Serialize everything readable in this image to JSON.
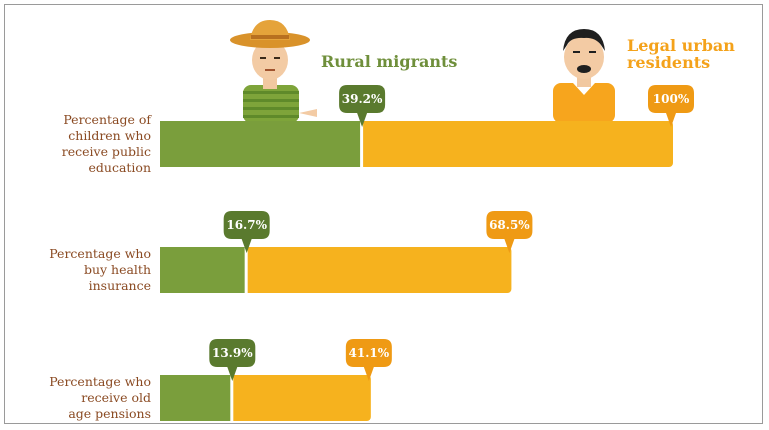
{
  "colors": {
    "rural_bar": "#7a9e3c",
    "rural_pin": "#5a7a2e",
    "urban_bar": "#f6b21e",
    "urban_pin": "#ef9a14",
    "label": "#8a4a22"
  },
  "figures": {
    "rural_icon": "farmer-with-straw-hat-icon",
    "urban_icon": "man-in-orange-shirt-icon"
  },
  "chart_data": {
    "type": "bar",
    "xlim": [
      0,
      100
    ],
    "series": [
      {
        "name": "Rural migrants",
        "values": [
          39.2,
          16.7,
          13.9
        ],
        "labels": [
          "39.2%",
          "16.7%",
          "13.9%"
        ]
      },
      {
        "name": "Legal urban residents",
        "values": [
          100,
          68.5,
          41.1
        ],
        "labels": [
          "100%",
          "68.5%",
          "41.1%"
        ]
      }
    ],
    "categories": [
      [
        "Percentage of",
        "children who",
        "receive public",
        "education"
      ],
      [
        "Percentage who",
        "buy health",
        "insurance"
      ],
      [
        "Percentage who",
        "receive old",
        "age pensions"
      ]
    ],
    "legend": {
      "rural": "Rural migrants",
      "urban": [
        "Legal urban",
        "residents"
      ]
    }
  }
}
